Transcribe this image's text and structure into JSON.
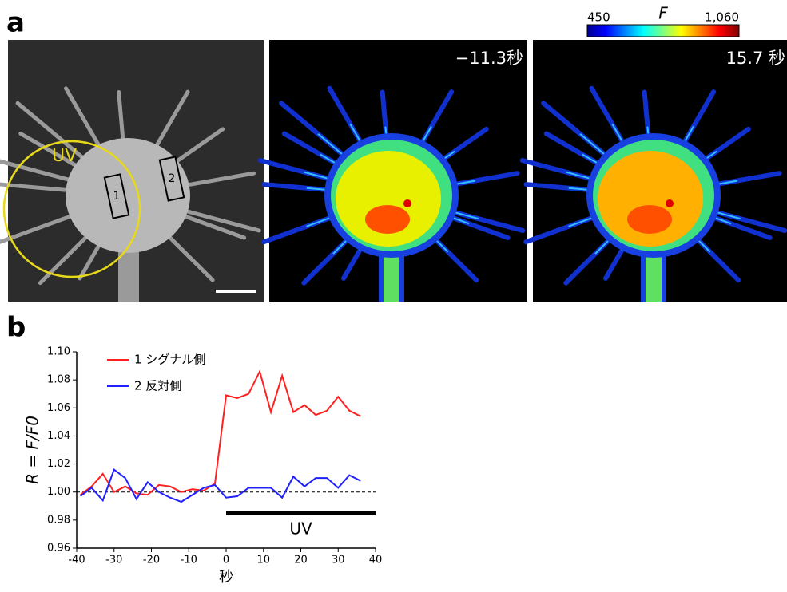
{
  "panel_a": {
    "label": "a",
    "uv_label": "UV",
    "roi_1": "1",
    "roi_2": "2",
    "time_1": "−11.3秒",
    "time_2": "15.7 秒",
    "colorbar": {
      "label": "F",
      "ticks": [
        450,
        {
          "value": 1060,
          "label": "1,060"
        }
      ]
    }
  },
  "chart_data": {
    "type": "line",
    "panel_label": "b",
    "xlabel": "秒",
    "ylabel": "R = F/F0",
    "x": [
      -39,
      -36,
      -33,
      -30,
      -27,
      -24,
      -21,
      -18,
      -15,
      -12,
      -9,
      -6,
      -3,
      0,
      3,
      6,
      9,
      12,
      15,
      18,
      21,
      24,
      27,
      30,
      33,
      36
    ],
    "series": [
      {
        "name": "1 シグナル側",
        "color": "#ff2020",
        "values": [
          0.998,
          1.004,
          1.013,
          1.0,
          1.004,
          0.999,
          0.998,
          1.005,
          1.004,
          1.0,
          1.002,
          1.001,
          1.006,
          1.069,
          1.067,
          1.07,
          1.086,
          1.057,
          1.083,
          1.057,
          1.062,
          1.055,
          1.058,
          1.068,
          1.058,
          1.054
        ]
      },
      {
        "name": "2 反対側",
        "color": "#2020ff",
        "values": [
          0.997,
          1.003,
          0.994,
          1.016,
          1.01,
          0.995,
          1.007,
          1.0,
          0.996,
          0.993,
          0.998,
          1.003,
          1.005,
          0.996,
          0.997,
          1.003,
          1.003,
          1.003,
          0.996,
          1.011,
          1.004,
          1.01,
          1.01,
          1.003,
          1.012,
          1.008
        ]
      }
    ],
    "xlim": [
      -40,
      40
    ],
    "xticks": [
      -40,
      -30,
      -20,
      -10,
      0,
      10,
      20,
      30,
      40
    ],
    "ylim": [
      0.96,
      1.1
    ],
    "yticks": [
      0.96,
      0.98,
      {
        "value": 1,
        "label": "1.00"
      },
      1.02,
      1.04,
      1.06,
      1.08,
      {
        "value": 1.1,
        "label": "1.10"
      }
    ],
    "hline": 1,
    "uv_span": [
      0,
      40
    ],
    "uv_label": "UV"
  }
}
